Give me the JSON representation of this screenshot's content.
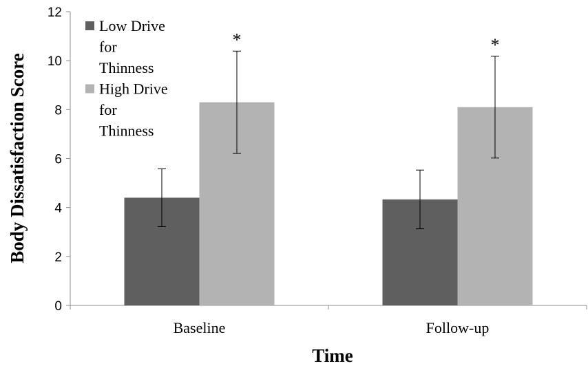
{
  "chart_data": {
    "type": "bar",
    "categories": [
      "Baseline",
      "Follow-up"
    ],
    "series": [
      {
        "name": "Low Drive for Thinness",
        "legend_lines": [
          "Low Drive",
          "for",
          "Thinness"
        ],
        "color": "#5f5f5f",
        "values": [
          4.4,
          4.33
        ],
        "error": [
          1.18,
          1.2
        ],
        "annotations": [
          "",
          ""
        ]
      },
      {
        "name": "High Drive for Thinness",
        "legend_lines": [
          "High Drive",
          "for",
          "Thinness"
        ],
        "color": "#b3b3b3",
        "values": [
          8.3,
          8.1
        ],
        "error": [
          2.09,
          2.08
        ],
        "annotations": [
          "*",
          "*"
        ]
      }
    ],
    "title": "",
    "xlabel": "Time",
    "ylabel": "Body Dissatisfaction Score",
    "ylim": [
      0,
      12
    ],
    "yticks": [
      0,
      2,
      4,
      6,
      8,
      10,
      12
    ],
    "grid": false,
    "legend_position": "top-left"
  }
}
